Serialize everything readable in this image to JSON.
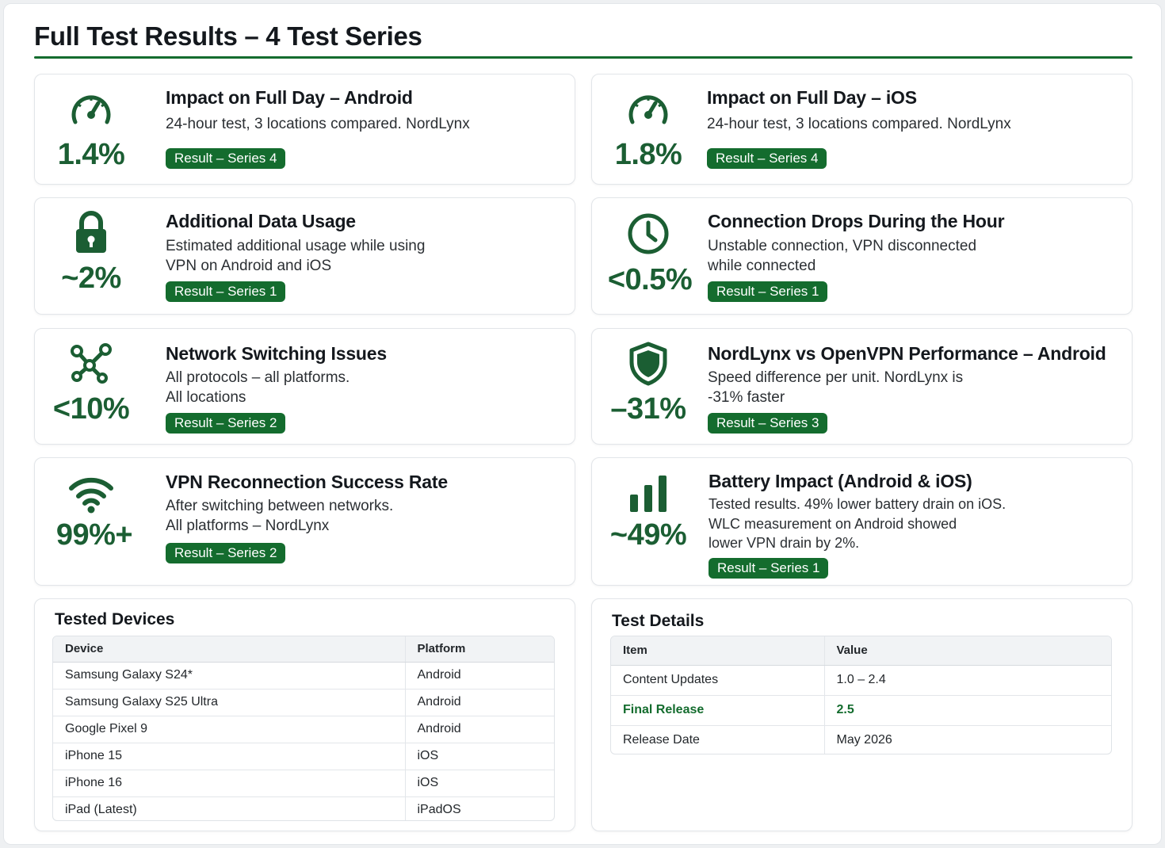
{
  "page_title": "Full Test Results – 4 Test Series",
  "colors": {
    "accent": "#146c2e",
    "metric": "#1b5e33"
  },
  "cards": [
    {
      "icon": "speedometer-icon",
      "value": "1.4%",
      "title": "Impact on Full Day – Android",
      "desc": [
        "24-hour test, 3 locations compared. NordLynx"
      ],
      "badge": "Result – Series 4"
    },
    {
      "icon": "speedometer-icon",
      "value": "1.8%",
      "title": "Impact on Full Day – iOS",
      "desc": [
        "24-hour test, 3 locations compared. NordLynx"
      ],
      "badge": "Result – Series 4"
    },
    {
      "icon": "lock-icon",
      "value": "~2%",
      "title": "Additional Data Usage",
      "desc": [
        "Estimated additional usage while using",
        "VPN on Android and iOS"
      ],
      "badge": "Result – Series 1"
    },
    {
      "icon": "clock-icon",
      "value": "<0.5%",
      "title": "Connection Drops During the Hour",
      "desc": [
        "Unstable connection, VPN disconnected",
        "while connected"
      ],
      "badge": "Result – Series 1"
    },
    {
      "icon": "network-nodes-icon",
      "value": "<10%",
      "title": "Network Switching Issues",
      "desc": [
        "All protocols – all platforms.",
        "All locations"
      ],
      "badge": "Result – Series 2"
    },
    {
      "icon": "shield-icon",
      "value": "–31%",
      "title": "NordLynx vs OpenVPN Performance – Android",
      "desc": [
        "Speed difference per unit. NordLynx is",
        "-31% faster"
      ],
      "badge": "Result – Series 3"
    },
    {
      "icon": "wifi-icon",
      "value": "99%+",
      "title": "VPN Reconnection Success Rate",
      "desc": [
        "After switching between networks.",
        "All platforms – NordLynx"
      ],
      "badge": "Result – Series 2"
    },
    {
      "icon": "bar-chart-icon",
      "value": "~49%",
      "title": "Battery Impact (Android & iOS)",
      "desc": [
        "Tested results. 49% lower battery drain on iOS.",
        "WLC measurement on Android showed",
        "lower VPN drain by 2%."
      ],
      "badge": "Result – Series 1"
    }
  ],
  "devices": {
    "title": "Tested Devices",
    "headers": [
      "Device",
      "Platform"
    ],
    "rows": [
      [
        "Samsung Galaxy S24*",
        "Android"
      ],
      [
        "Samsung Galaxy S25 Ultra",
        "Android"
      ],
      [
        "Google Pixel 9",
        "Android"
      ],
      [
        "iPhone 15",
        "iOS"
      ],
      [
        "iPhone 16",
        "iOS"
      ],
      [
        "iPad (Latest)",
        "iPadOS"
      ]
    ]
  },
  "details": {
    "title": "Test Details",
    "headers": [
      "Item",
      "Value"
    ],
    "rows": [
      [
        "Content Updates",
        "1.0 – 2.4"
      ],
      [
        "Final Release",
        "2.5"
      ],
      [
        "Release Date",
        "May 2026"
      ]
    ]
  }
}
